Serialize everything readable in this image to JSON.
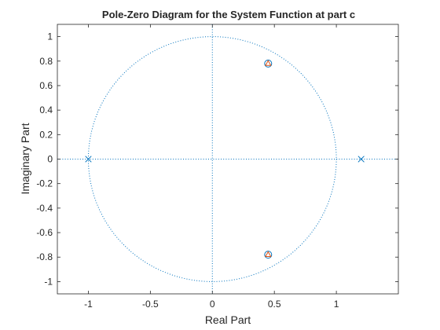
{
  "chart_data": {
    "type": "scatter",
    "title": "Pole-Zero Diagram for the System Function at part c",
    "xlabel": "Real Part",
    "ylabel": "Imaginary Part",
    "xlim": [
      -1.25,
      1.5
    ],
    "ylim": [
      -1.1,
      1.1
    ],
    "x_ticks": [
      -1,
      -0.5,
      0,
      0.5,
      1
    ],
    "x_tick_labels": [
      "-1",
      "-0.5",
      "0",
      "0.5",
      "1"
    ],
    "y_ticks": [
      1,
      0.8,
      0.6,
      0.4,
      0.2,
      0,
      -0.2,
      -0.4,
      -0.6,
      -0.8,
      -1
    ],
    "y_tick_labels": [
      "1",
      "0.8",
      "0.6",
      "0.4",
      "0.2",
      "0",
      "-0.2",
      "-0.4",
      "-0.6",
      "-0.8",
      "-1"
    ],
    "grid": false,
    "unit_circle": true,
    "series": [
      {
        "marker": "o",
        "color": "#0072BD",
        "x": [
          0.45,
          0.45
        ],
        "y": [
          0.78,
          -0.78
        ]
      },
      {
        "marker": "x",
        "color": "#0072BD",
        "x": [
          -1,
          1.2
        ],
        "y": [
          0,
          0
        ]
      },
      {
        "marker": "triangle",
        "color": "#D95319",
        "x": [
          0.45,
          0.45
        ],
        "y": [
          0.78,
          -0.78
        ]
      }
    ],
    "colors": {
      "axis": "#262626",
      "guide": "#0072BD"
    }
  }
}
